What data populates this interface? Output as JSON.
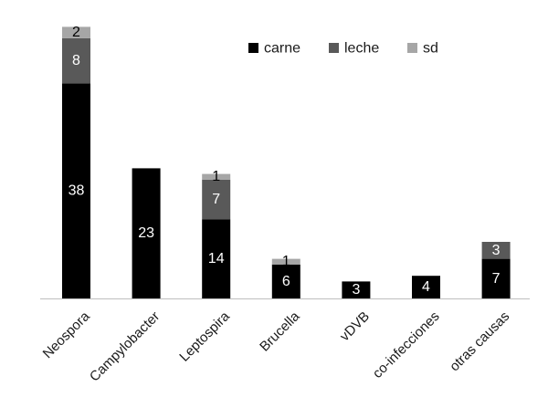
{
  "chart_data": {
    "type": "bar",
    "stacked": true,
    "title": "",
    "xlabel": "",
    "ylabel": "",
    "ylim": [
      0,
      48
    ],
    "grid": false,
    "legend_position": "top-right",
    "categories": [
      "Neospora",
      "Campylobacter",
      "Leptospira",
      "Brucella",
      "vDVB",
      "co-infecciones",
      "otras causas"
    ],
    "series": [
      {
        "name": "carne",
        "color": "#000000",
        "label_color": "#ffffff",
        "values": [
          38,
          23,
          14,
          6,
          3,
          4,
          7
        ]
      },
      {
        "name": "leche",
        "color": "#595959",
        "label_color": "#ffffff",
        "values": [
          8,
          0,
          7,
          0,
          0,
          0,
          3
        ]
      },
      {
        "name": "sd",
        "color": "#a6a6a6",
        "label_color": "#000000",
        "values": [
          2,
          0,
          1,
          1,
          0,
          0,
          0
        ]
      }
    ]
  }
}
